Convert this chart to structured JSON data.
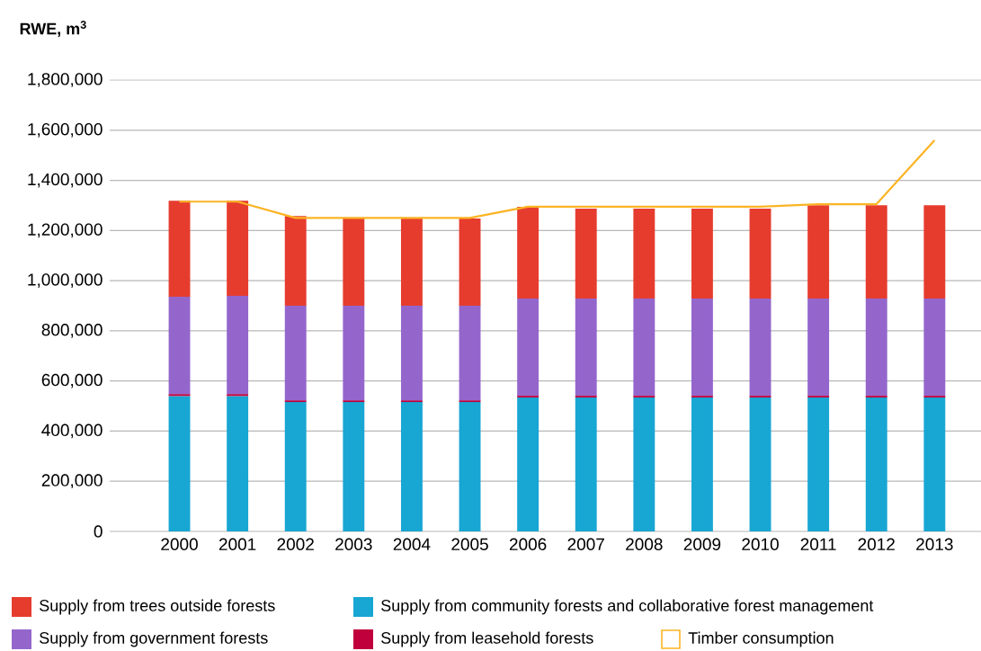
{
  "chart_data": {
    "type": "bar",
    "stacked": true,
    "ylabel": "**RWE, m$^{3}$**",
    "categories": [
      "2000",
      "2001",
      "2002",
      "2003",
      "2004",
      "2005",
      "2006",
      "2007",
      "2008",
      "2009",
      "2010",
      "2011",
      "2012",
      "2013"
    ],
    "series": [
      {
        "name": "Supply from community forests and collaborative forest management",
        "color": "#18a6d3",
        "values": [
          540000,
          540000,
          516000,
          516000,
          516000,
          516000,
          534000,
          534000,
          534000,
          534000,
          534000,
          534000,
          534000,
          534000
        ]
      },
      {
        "name": "Supply from leasehold forests",
        "color": "#c0003c",
        "values": [
          8000,
          8000,
          7000,
          7000,
          7000,
          7000,
          7000,
          7000,
          7000,
          7000,
          7000,
          7000,
          7000,
          7000
        ]
      },
      {
        "name": "Supply from government forests",
        "color": "#9466cc",
        "values": [
          388000,
          391000,
          377000,
          377000,
          377000,
          377000,
          388000,
          388000,
          388000,
          388000,
          388000,
          388000,
          388000,
          388000
        ]
      },
      {
        "name": "Supply from trees outside forests",
        "color": "#e63c2e",
        "values": [
          383000,
          380000,
          358000,
          348000,
          348000,
          348000,
          365000,
          358000,
          358000,
          358000,
          358000,
          372000,
          372000,
          372000
        ]
      },
      {
        "name": "Timber consumption",
        "type": "line",
        "color": "#fbb424",
        "values": [
          1315000,
          1315000,
          1250000,
          1250000,
          1250000,
          1250000,
          1295000,
          1295000,
          1295000,
          1295000,
          1295000,
          1305000,
          1305000,
          1560000
        ]
      }
    ],
    "ylim": [
      0,
      1800000
    ],
    "yticks": [
      0,
      {
        "value": 200000,
        "label": "200,000"
      },
      {
        "value": 400000,
        "label": "400,000"
      },
      {
        "value": 600000,
        "label": "600,000"
      },
      {
        "value": 800000,
        "label": "800,000"
      },
      {
        "value": 1000000,
        "label": "1,000,000"
      },
      {
        "value": 1200000,
        "label": "1,200,000"
      },
      {
        "value": 1400000,
        "label": "1,400,000"
      },
      {
        "value": 1600000,
        "label": "1,600,000"
      },
      {
        "value": 1800000,
        "label": "1,800,000"
      }
    ],
    "grid": "y",
    "legend": "bottom"
  }
}
